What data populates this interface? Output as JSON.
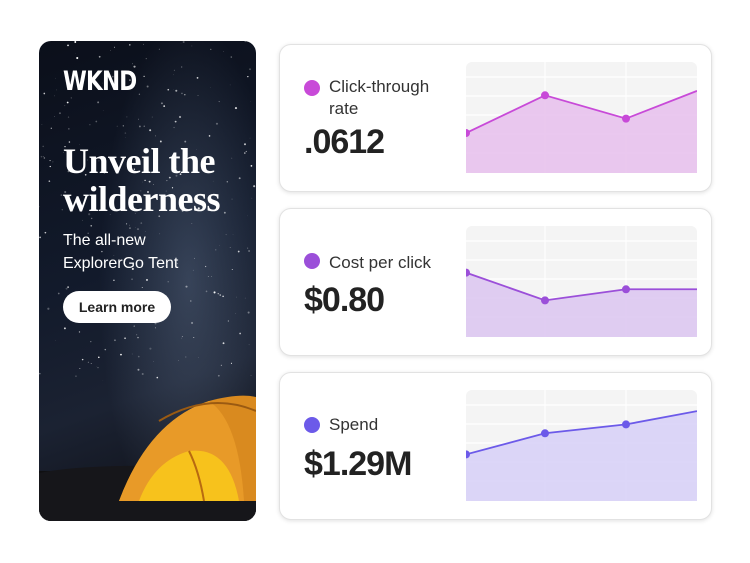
{
  "ad": {
    "logo": "WKND",
    "headline": "Unveil the wilderness",
    "subline_1": "The all-new",
    "subline_2": "ExplorerGo Tent",
    "cta": "Learn more"
  },
  "metrics": [
    {
      "label": "Click-through rate",
      "value": ".0612",
      "color": "#c84ad8",
      "fill": "#e8c2ed",
      "levels": [
        0.36,
        0.7,
        0.49,
        0.74
      ]
    },
    {
      "label": "Cost per click",
      "value": "$0.80",
      "color": "#9b4fd9",
      "fill": "#ddc8f1",
      "levels": [
        0.58,
        0.33,
        0.43,
        0.43
      ]
    },
    {
      "label": "Spend",
      "value": "$1.29M",
      "color": "#6c5ae9",
      "fill": "#d8d2f7",
      "levels": [
        0.42,
        0.61,
        0.69,
        0.81
      ]
    }
  ]
}
